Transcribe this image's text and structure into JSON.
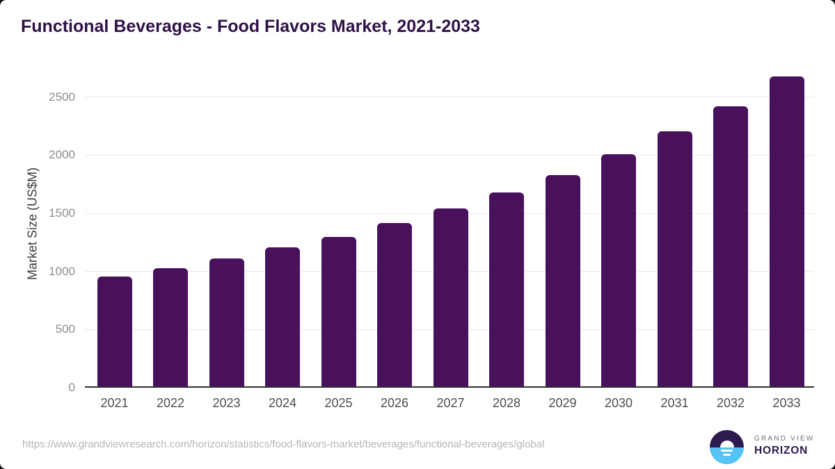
{
  "page": {
    "title": "Functional Beverages - Food Flavors Market, 2021-2033",
    "source_url": "https://www.grandviewresearch.com/horizon/statistics/food-flavors-market/beverages/functional-beverages/global"
  },
  "chart_data": {
    "type": "bar",
    "title": "Functional Beverages - Food Flavors Market, 2021-2033",
    "categories": [
      "2021",
      "2022",
      "2023",
      "2024",
      "2025",
      "2026",
      "2027",
      "2028",
      "2029",
      "2030",
      "2031",
      "2032",
      "2033"
    ],
    "values": [
      955,
      1030,
      1113,
      1205,
      1300,
      1417,
      1540,
      1677,
      1832,
      2007,
      2205,
      2418,
      2675
    ],
    "xlabel": "",
    "ylabel": "Market Size (US$M)",
    "ylim": [
      0,
      2700
    ],
    "yticks": [
      0,
      500,
      1000,
      1500,
      2000,
      2500
    ],
    "grid": true,
    "legend": "none",
    "bar_color": "#49115b"
  },
  "colors": {
    "bar": "#49115b",
    "title": "#2f1047",
    "gridline": "#e9e9e9",
    "axis_line": "#2e2e2e",
    "y_tick_label": "#8c8c8c",
    "x_tick_label": "#4d4d4d",
    "axis_title": "#3b3b3b",
    "source_url": "#b6b6b6",
    "logo_navy": "#2d1a4e",
    "logo_blue": "#55c3f3",
    "logo_gray_text": "#71717d"
  },
  "logo": {
    "line1": "GRAND VIEW",
    "line2": "HORIZON"
  }
}
